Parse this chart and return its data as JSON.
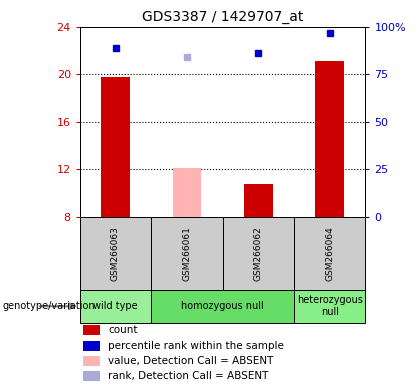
{
  "title": "GDS3387 / 1429707_at",
  "samples": [
    "GSM266063",
    "GSM266061",
    "GSM266062",
    "GSM266064"
  ],
  "bar_values": [
    19.8,
    12.1,
    10.8,
    21.1
  ],
  "bar_colors": [
    "#cc0000",
    "#ffb3b3",
    "#cc0000",
    "#cc0000"
  ],
  "percentile_values": [
    22.2,
    21.5,
    21.8,
    23.5
  ],
  "percentile_colors": [
    "#0000cc",
    "#aaaadd",
    "#0000cc",
    "#0000cc"
  ],
  "ylim_left": [
    8,
    24
  ],
  "yticks_left": [
    8,
    12,
    16,
    20,
    24
  ],
  "ylim_right": [
    0,
    100
  ],
  "yticks_right": [
    0,
    25,
    50,
    75,
    100
  ],
  "ytick_labels_right": [
    "0",
    "25",
    "50",
    "75",
    "100%"
  ],
  "groups": [
    {
      "label": "wild type",
      "cols": [
        0
      ],
      "color": "#99ee99"
    },
    {
      "label": "homozygous null",
      "cols": [
        1,
        2
      ],
      "color": "#66dd66"
    },
    {
      "label": "heterozygous\nnull",
      "cols": [
        3
      ],
      "color": "#88ee88"
    }
  ],
  "group_row_label": "genotype/variation",
  "legend_items": [
    {
      "color": "#cc0000",
      "label": "count"
    },
    {
      "color": "#0000cc",
      "label": "percentile rank within the sample"
    },
    {
      "color": "#ffb3b3",
      "label": "value, Detection Call = ABSENT"
    },
    {
      "color": "#aaaadd",
      "label": "rank, Detection Call = ABSENT"
    }
  ],
  "left_axis_color": "#cc0000",
  "right_axis_color": "#0000cc",
  "sample_box_color": "#cccccc",
  "bar_width": 0.4,
  "dotted_yticks": [
    12,
    16,
    20
  ]
}
